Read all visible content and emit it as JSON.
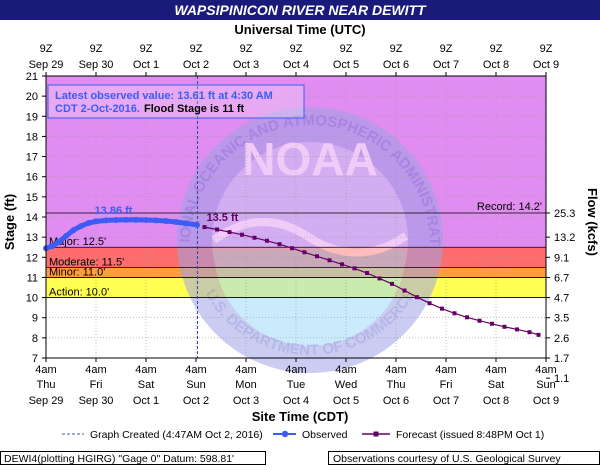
{
  "title": "WAPSIPINICON RIVER NEAR DEWITT",
  "top_axis_title": "Universal Time (UTC)",
  "bottom_axis_title": "Site Time (CDT)",
  "left_axis_title": "Stage (ft)",
  "right_axis_title": "Flow (kcfs)",
  "info": {
    "line1": "Latest observed value: 13.61 ft at 4:30 AM",
    "line2a": "CDT 2-Oct-2016.",
    "line2b": "Flood Stage is 11 ft"
  },
  "watermark": {
    "text": "NOAA",
    "ring_text": "NATIONAL OCEANIC AND ATMOSPHERIC ADMINISTRATION",
    "lower_text": "U.S. DEPARTMENT OF COMMERCE"
  },
  "legend": {
    "created": "Graph Created (4:47AM Oct 2, 2016)",
    "observed": "Observed",
    "forecast": "Forecast (issued 8:48PM Oct 1)"
  },
  "footer": {
    "left": "DEWI4(plotting HGIRG) \"Gage 0\" Datum: 598.81'",
    "right": "Observations courtesy of U.S. Geological Survey"
  },
  "colors": {
    "record": "#e08cf0",
    "major": "#cc7cf0",
    "moderate": "#ff6c6c",
    "minor": "#ff9e3c",
    "action": "#ffff54",
    "observed": "#3d5cf5",
    "forecast": "#660066",
    "title_bar": "#1a1a7a"
  },
  "chart_data": {
    "type": "line",
    "ylim": [
      7,
      21
    ],
    "y_ticks": [
      7,
      8,
      9,
      10,
      11,
      12,
      13,
      14,
      15,
      16,
      17,
      18,
      19,
      20,
      21
    ],
    "xlim_days_from_sep29_4am": [
      0,
      10
    ],
    "bottom_ticks": [
      {
        "day": 0,
        "l1": "4am",
        "l2": "Thu",
        "l3": "Sep 29"
      },
      {
        "day": 1,
        "l1": "4am",
        "l2": "Fri",
        "l3": "Sep 30"
      },
      {
        "day": 2,
        "l1": "4am",
        "l2": "Sat",
        "l3": "Oct 1"
      },
      {
        "day": 3,
        "l1": "4am",
        "l2": "Sun",
        "l3": "Oct 2"
      },
      {
        "day": 4,
        "l1": "4am",
        "l2": "Mon",
        "l3": "Oct 3"
      },
      {
        "day": 5,
        "l1": "4am",
        "l2": "Tue",
        "l3": "Oct 4"
      },
      {
        "day": 6,
        "l1": "4am",
        "l2": "Wed",
        "l3": "Oct 5"
      },
      {
        "day": 7,
        "l1": "4am",
        "l2": "Thu",
        "l3": "Oct 6"
      },
      {
        "day": 8,
        "l1": "4am",
        "l2": "Fri",
        "l3": "Oct 7"
      },
      {
        "day": 9,
        "l1": "4am",
        "l2": "Sat",
        "l3": "Oct 8"
      },
      {
        "day": 10,
        "l1": "4am",
        "l2": "Sun",
        "l3": "Oct 9"
      }
    ],
    "top_ticks": [
      {
        "day": 0,
        "l1": "9Z",
        "l2": "Sep 29"
      },
      {
        "day": 1,
        "l1": "9Z",
        "l2": "Sep 30"
      },
      {
        "day": 2,
        "l1": "9Z",
        "l2": "Oct 1"
      },
      {
        "day": 3,
        "l1": "9Z",
        "l2": "Oct 2"
      },
      {
        "day": 4,
        "l1": "9Z",
        "l2": "Oct 3"
      },
      {
        "day": 5,
        "l1": "9Z",
        "l2": "Oct 4"
      },
      {
        "day": 6,
        "l1": "9Z",
        "l2": "Oct 5"
      },
      {
        "day": 7,
        "l1": "9Z",
        "l2": "Oct 6"
      },
      {
        "day": 8,
        "l1": "9Z",
        "l2": "Oct 7"
      },
      {
        "day": 9,
        "l1": "9Z",
        "l2": "Oct 8"
      },
      {
        "day": 10,
        "l1": "9Z",
        "l2": "Oct 9"
      }
    ],
    "flow_ticks": [
      {
        "stage": 14.2,
        "label": "25.3"
      },
      {
        "stage": 13.0,
        "label": "13.2"
      },
      {
        "stage": 12.0,
        "label": "9.1"
      },
      {
        "stage": 11.0,
        "label": "6.7"
      },
      {
        "stage": 10.0,
        "label": "4.7"
      },
      {
        "stage": 9.0,
        "label": "3.5"
      },
      {
        "stage": 8.0,
        "label": "2.6"
      },
      {
        "stage": 7.0,
        "label": "1.7"
      },
      {
        "stage": 6.0,
        "label": "1.1"
      }
    ],
    "thresholds": [
      {
        "name": "record",
        "label": "Record: 14.2'",
        "value": 14.2
      },
      {
        "name": "major",
        "label": "Major: 12.5'",
        "value": 12.5
      },
      {
        "name": "moderate",
        "label": "Moderate: 11.5'",
        "value": 11.5
      },
      {
        "name": "minor",
        "label": "Minor: 11.0'",
        "value": 11.0
      },
      {
        "name": "action",
        "label": "Action: 10.0'",
        "value": 10.0
      }
    ],
    "graph_created_day": 3.03,
    "peak_label": "13.86 ft",
    "forecast_start_label": "13.5 ft",
    "observed": [
      {
        "x": 0.0,
        "y": 12.45
      },
      {
        "x": 0.12,
        "y": 12.55
      },
      {
        "x": 0.25,
        "y": 12.75
      },
      {
        "x": 0.4,
        "y": 13.05
      },
      {
        "x": 0.55,
        "y": 13.35
      },
      {
        "x": 0.7,
        "y": 13.55
      },
      {
        "x": 0.85,
        "y": 13.7
      },
      {
        "x": 1.0,
        "y": 13.78
      },
      {
        "x": 1.2,
        "y": 13.83
      },
      {
        "x": 1.4,
        "y": 13.85
      },
      {
        "x": 1.6,
        "y": 13.86
      },
      {
        "x": 1.8,
        "y": 13.86
      },
      {
        "x": 2.0,
        "y": 13.85
      },
      {
        "x": 2.2,
        "y": 13.83
      },
      {
        "x": 2.4,
        "y": 13.8
      },
      {
        "x": 2.6,
        "y": 13.75
      },
      {
        "x": 2.8,
        "y": 13.68
      },
      {
        "x": 3.02,
        "y": 13.61
      }
    ],
    "forecast": [
      {
        "x": 3.17,
        "y": 13.5
      },
      {
        "x": 3.42,
        "y": 13.38
      },
      {
        "x": 3.67,
        "y": 13.25
      },
      {
        "x": 3.92,
        "y": 13.12
      },
      {
        "x": 4.17,
        "y": 12.97
      },
      {
        "x": 4.42,
        "y": 12.82
      },
      {
        "x": 4.67,
        "y": 12.65
      },
      {
        "x": 4.92,
        "y": 12.45
      },
      {
        "x": 5.17,
        "y": 12.25
      },
      {
        "x": 5.42,
        "y": 12.05
      },
      {
        "x": 5.67,
        "y": 11.85
      },
      {
        "x": 5.92,
        "y": 11.65
      },
      {
        "x": 6.17,
        "y": 11.45
      },
      {
        "x": 6.42,
        "y": 11.22
      },
      {
        "x": 6.67,
        "y": 10.95
      },
      {
        "x": 6.92,
        "y": 10.68
      },
      {
        "x": 7.17,
        "y": 10.35
      },
      {
        "x": 7.42,
        "y": 10.02
      },
      {
        "x": 7.67,
        "y": 9.72
      },
      {
        "x": 7.92,
        "y": 9.45
      },
      {
        "x": 8.17,
        "y": 9.22
      },
      {
        "x": 8.42,
        "y": 9.02
      },
      {
        "x": 8.67,
        "y": 8.85
      },
      {
        "x": 8.92,
        "y": 8.7
      },
      {
        "x": 9.17,
        "y": 8.55
      },
      {
        "x": 9.42,
        "y": 8.42
      },
      {
        "x": 9.67,
        "y": 8.28
      },
      {
        "x": 9.85,
        "y": 8.15
      }
    ]
  }
}
